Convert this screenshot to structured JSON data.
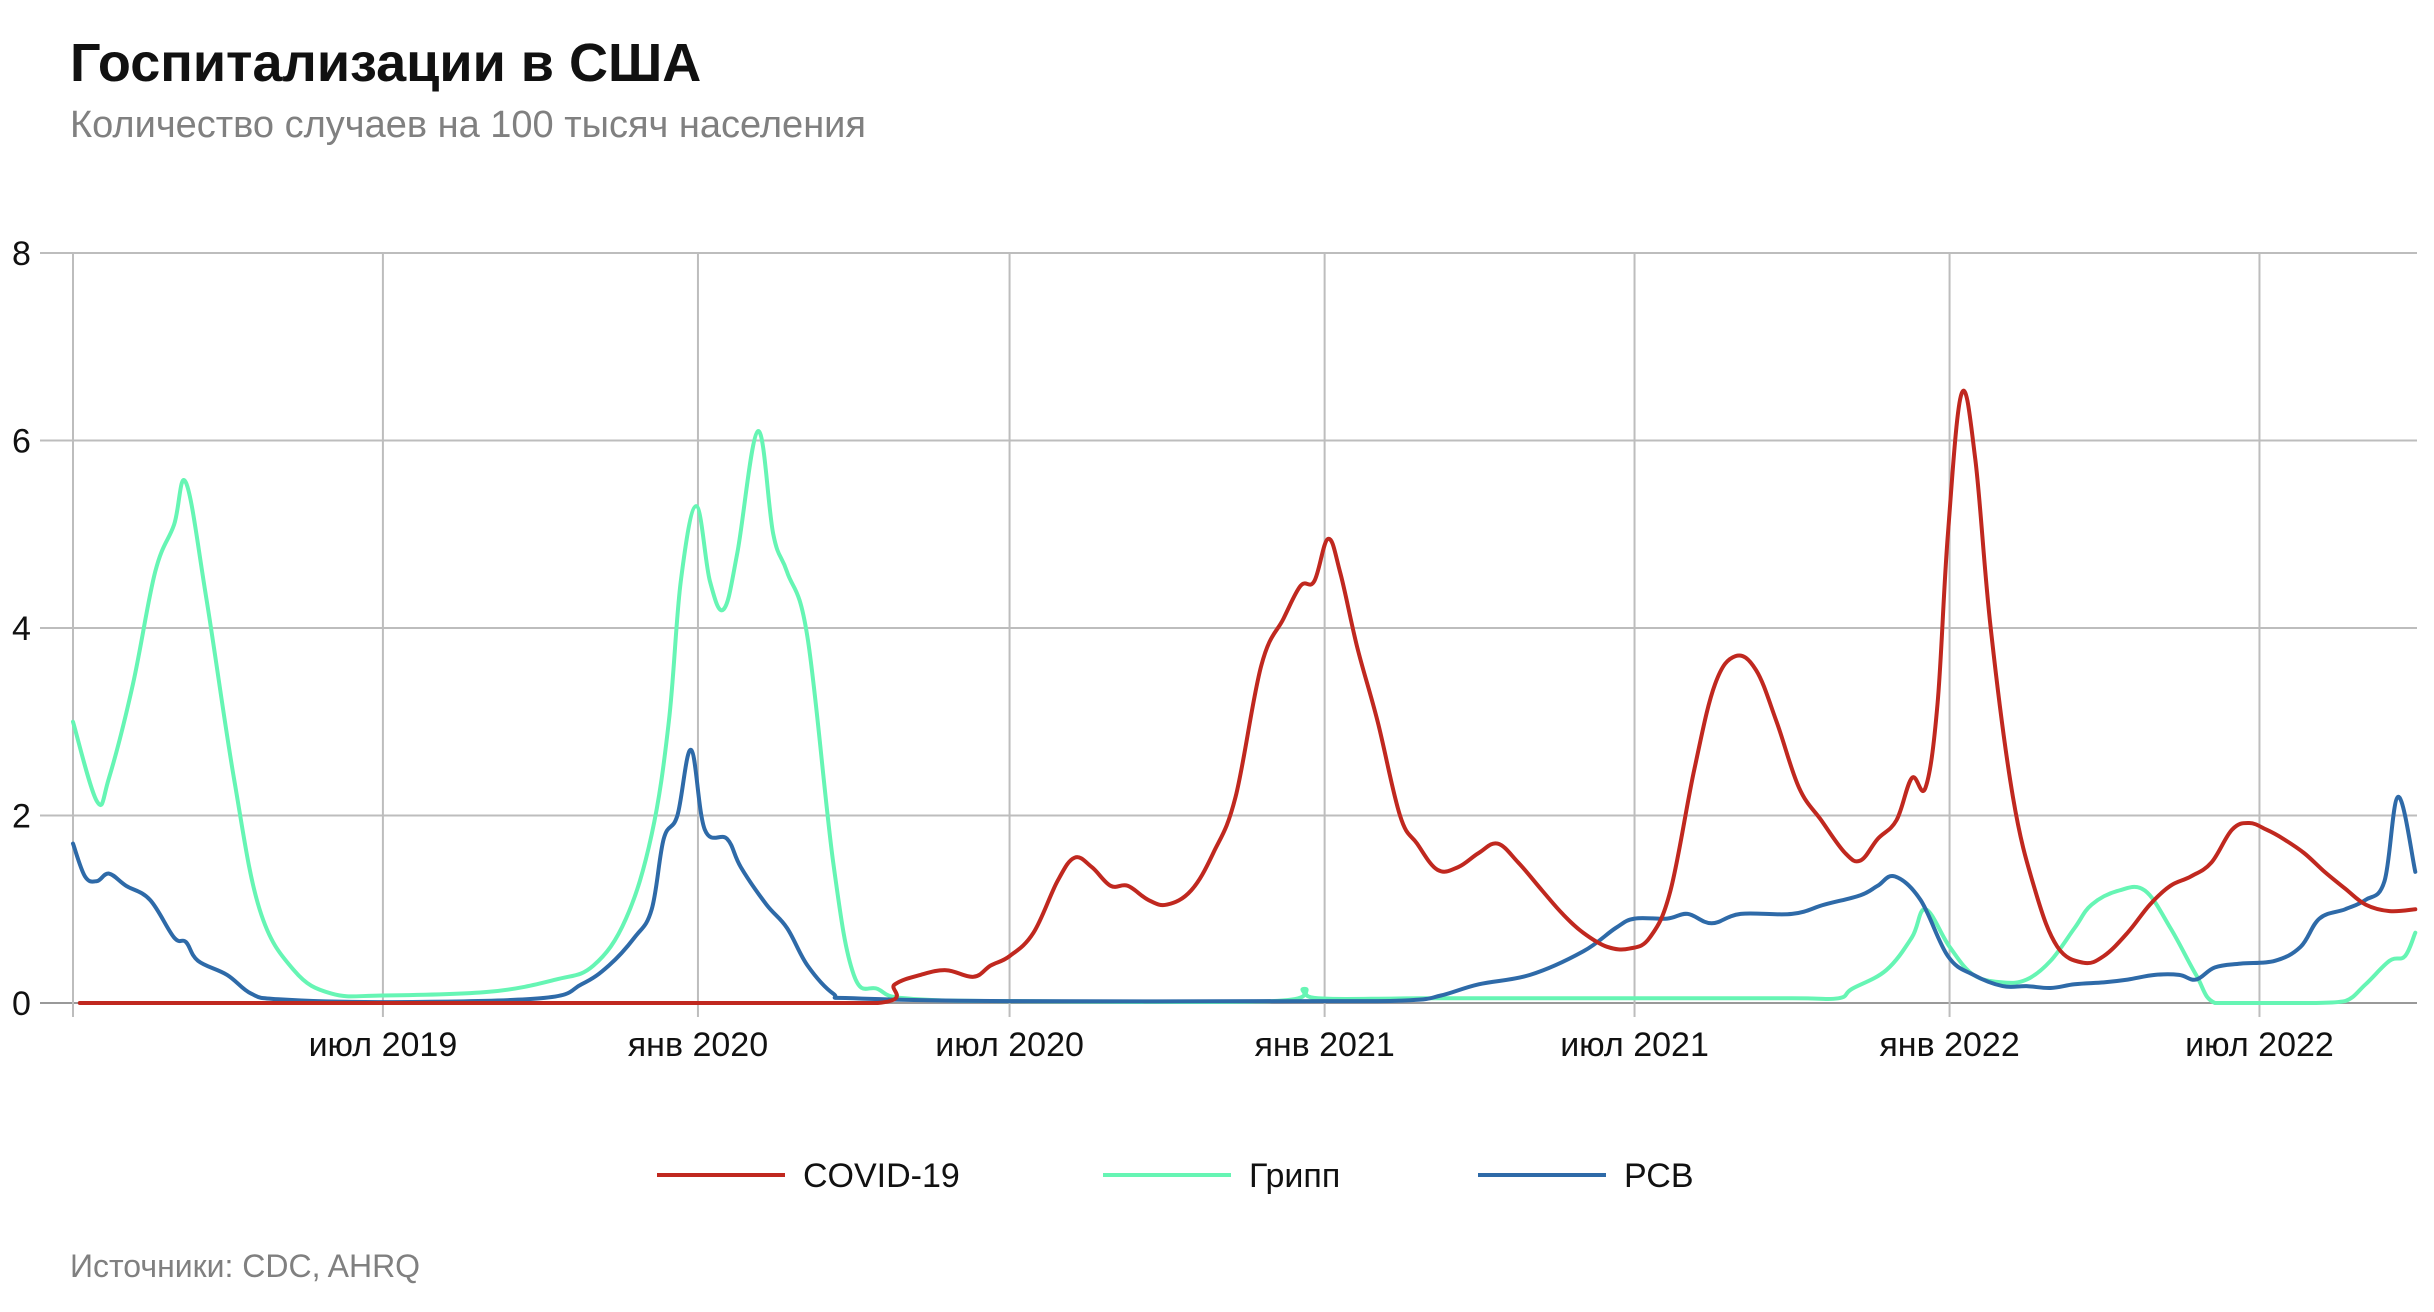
{
  "header": {
    "title": "Госпитализации в США",
    "subtitle": "Количество случаев на 100 тысяч населения"
  },
  "footer": {
    "source": "Источники: CDC, AHRQ"
  },
  "colors": {
    "covid": "#c0281f",
    "flu": "#66f5b4",
    "rsv": "#2e6aa8",
    "grid": "#bdbdbd",
    "axis": "#999999"
  },
  "chart_data": {
    "type": "line",
    "title": "Госпитализации в США",
    "subtitle": "Количество случаев на 100 тысяч населения",
    "xlabel": "",
    "ylabel": "",
    "x_range": [
      "2019-01-01",
      "2022-10-01"
    ],
    "ylim": [
      0,
      8
    ],
    "y_ticks": [
      0,
      2,
      4,
      6,
      8
    ],
    "x_ticks": [
      {
        "date": "2019-07-01",
        "label": "июл 2019"
      },
      {
        "date": "2020-01-01",
        "label": "янв 2020"
      },
      {
        "date": "2020-07-01",
        "label": "июл 2020"
      },
      {
        "date": "2021-01-01",
        "label": "янв 2021"
      },
      {
        "date": "2021-07-01",
        "label": "июл 2021"
      },
      {
        "date": "2022-01-01",
        "label": "янв 2022"
      },
      {
        "date": "2022-07-01",
        "label": "июл 2022"
      }
    ],
    "grid": true,
    "legend_position": "bottom-center",
    "series": [
      {
        "name": "COVID-19",
        "color": "#c0281f",
        "points": [
          [
            "2019-01-05",
            0
          ],
          [
            "2019-07-01",
            0
          ],
          [
            "2020-01-01",
            0
          ],
          [
            "2020-04-15",
            0
          ],
          [
            "2020-04-25",
            0.2
          ],
          [
            "2020-05-10",
            0.3
          ],
          [
            "2020-05-25",
            0.35
          ],
          [
            "2020-06-10",
            0.28
          ],
          [
            "2020-06-20",
            0.4
          ],
          [
            "2020-07-01",
            0.5
          ],
          [
            "2020-07-15",
            0.75
          ],
          [
            "2020-07-29",
            1.3
          ],
          [
            "2020-08-08",
            1.55
          ],
          [
            "2020-08-18",
            1.45
          ],
          [
            "2020-08-29",
            1.25
          ],
          [
            "2020-09-08",
            1.25
          ],
          [
            "2020-09-20",
            1.1
          ],
          [
            "2020-10-01",
            1.05
          ],
          [
            "2020-10-15",
            1.2
          ],
          [
            "2020-10-28",
            1.6
          ],
          [
            "2020-11-10",
            2.2
          ],
          [
            "2020-11-25",
            3.6
          ],
          [
            "2020-12-08",
            4.1
          ],
          [
            "2020-12-18",
            4.45
          ],
          [
            "2020-12-26",
            4.5
          ],
          [
            "2021-01-03",
            4.95
          ],
          [
            "2021-01-10",
            4.6
          ],
          [
            "2021-01-20",
            3.8
          ],
          [
            "2021-02-01",
            3.0
          ],
          [
            "2021-02-14",
            2.0
          ],
          [
            "2021-02-24",
            1.7
          ],
          [
            "2021-03-08",
            1.42
          ],
          [
            "2021-03-20",
            1.45
          ],
          [
            "2021-04-01",
            1.6
          ],
          [
            "2021-04-12",
            1.7
          ],
          [
            "2021-04-24",
            1.5
          ],
          [
            "2021-05-08",
            1.2
          ],
          [
            "2021-05-20",
            0.95
          ],
          [
            "2021-06-01",
            0.75
          ],
          [
            "2021-06-15",
            0.6
          ],
          [
            "2021-06-28",
            0.58
          ],
          [
            "2021-07-10",
            0.7
          ],
          [
            "2021-07-22",
            1.2
          ],
          [
            "2021-08-05",
            2.5
          ],
          [
            "2021-08-17",
            3.4
          ],
          [
            "2021-08-29",
            3.7
          ],
          [
            "2021-09-10",
            3.55
          ],
          [
            "2021-09-22",
            3.0
          ],
          [
            "2021-10-05",
            2.3
          ],
          [
            "2021-10-18",
            1.95
          ],
          [
            "2021-11-01",
            1.6
          ],
          [
            "2021-11-10",
            1.52
          ],
          [
            "2021-11-20",
            1.75
          ],
          [
            "2021-12-01",
            1.95
          ],
          [
            "2021-12-10",
            2.4
          ],
          [
            "2021-12-18",
            2.3
          ],
          [
            "2021-12-25",
            3.2
          ],
          [
            "2021-12-31",
            5.0
          ],
          [
            "2022-01-08",
            6.5
          ],
          [
            "2022-01-16",
            5.8
          ],
          [
            "2022-01-25",
            4.0
          ],
          [
            "2022-02-07",
            2.2
          ],
          [
            "2022-02-20",
            1.2
          ],
          [
            "2022-03-05",
            0.6
          ],
          [
            "2022-03-20",
            0.43
          ],
          [
            "2022-04-01",
            0.5
          ],
          [
            "2022-04-15",
            0.75
          ],
          [
            "2022-04-28",
            1.05
          ],
          [
            "2022-05-10",
            1.25
          ],
          [
            "2022-05-22",
            1.35
          ],
          [
            "2022-06-03",
            1.5
          ],
          [
            "2022-06-15",
            1.85
          ],
          [
            "2022-06-25",
            1.92
          ],
          [
            "2022-07-05",
            1.85
          ],
          [
            "2022-07-15",
            1.75
          ],
          [
            "2022-07-27",
            1.6
          ],
          [
            "2022-08-08",
            1.4
          ],
          [
            "2022-08-20",
            1.22
          ],
          [
            "2022-09-01",
            1.05
          ],
          [
            "2022-09-15",
            0.98
          ],
          [
            "2022-09-30",
            1.0
          ]
        ]
      },
      {
        "name": "Грипп",
        "color": "#66f5b4",
        "points": [
          [
            "2019-01-01",
            3.0
          ],
          [
            "2019-01-15",
            2.15
          ],
          [
            "2019-01-22",
            2.4
          ],
          [
            "2019-02-05",
            3.4
          ],
          [
            "2019-02-18",
            4.6
          ],
          [
            "2019-03-01",
            5.1
          ],
          [
            "2019-03-08",
            5.55
          ],
          [
            "2019-03-20",
            4.3
          ],
          [
            "2019-04-05",
            2.4
          ],
          [
            "2019-04-20",
            1.0
          ],
          [
            "2019-05-10",
            0.35
          ],
          [
            "2019-06-01",
            0.1
          ],
          [
            "2019-07-01",
            0.08
          ],
          [
            "2019-09-01",
            0.12
          ],
          [
            "2019-10-10",
            0.25
          ],
          [
            "2019-11-01",
            0.4
          ],
          [
            "2019-11-20",
            0.9
          ],
          [
            "2019-12-05",
            1.8
          ],
          [
            "2019-12-15",
            3.0
          ],
          [
            "2019-12-22",
            4.5
          ],
          [
            "2019-12-31",
            5.3
          ],
          [
            "2020-01-08",
            4.5
          ],
          [
            "2020-01-16",
            4.2
          ],
          [
            "2020-01-24",
            4.8
          ],
          [
            "2020-02-05",
            6.1
          ],
          [
            "2020-02-14",
            5.0
          ],
          [
            "2020-02-22",
            4.6
          ],
          [
            "2020-03-05",
            3.9
          ],
          [
            "2020-03-20",
            1.5
          ],
          [
            "2020-04-01",
            0.3
          ],
          [
            "2020-04-15",
            0.15
          ],
          [
            "2020-05-01",
            0.05
          ],
          [
            "2020-07-01",
            0.02
          ],
          [
            "2020-12-01",
            0.02
          ],
          [
            "2020-12-20",
            0.15
          ],
          [
            "2020-12-28",
            0.05
          ],
          [
            "2021-03-01",
            0.05
          ],
          [
            "2021-07-01",
            0.05
          ],
          [
            "2021-10-01",
            0.05
          ],
          [
            "2021-10-28",
            0.05
          ],
          [
            "2021-11-05",
            0.15
          ],
          [
            "2021-11-25",
            0.35
          ],
          [
            "2021-12-10",
            0.7
          ],
          [
            "2021-12-18",
            1.0
          ],
          [
            "2022-01-01",
            0.6
          ],
          [
            "2022-01-15",
            0.3
          ],
          [
            "2022-02-01",
            0.22
          ],
          [
            "2022-02-15",
            0.25
          ],
          [
            "2022-03-01",
            0.45
          ],
          [
            "2022-03-15",
            0.8
          ],
          [
            "2022-03-25",
            1.05
          ],
          [
            "2022-04-10",
            1.2
          ],
          [
            "2022-04-25",
            1.2
          ],
          [
            "2022-05-10",
            0.8
          ],
          [
            "2022-05-25",
            0.3
          ],
          [
            "2022-06-05",
            0.0
          ],
          [
            "2022-07-01",
            0.0
          ],
          [
            "2022-08-01",
            0.0
          ],
          [
            "2022-08-20",
            0.02
          ],
          [
            "2022-09-01",
            0.2
          ],
          [
            "2022-09-15",
            0.45
          ],
          [
            "2022-09-24",
            0.5
          ],
          [
            "2022-09-30",
            0.75
          ]
        ]
      },
      {
        "name": "РСВ",
        "color": "#2e6aa8",
        "points": [
          [
            "2019-01-01",
            1.7
          ],
          [
            "2019-01-08",
            1.35
          ],
          [
            "2019-01-15",
            1.3
          ],
          [
            "2019-01-22",
            1.38
          ],
          [
            "2019-02-01",
            1.25
          ],
          [
            "2019-02-15",
            1.1
          ],
          [
            "2019-03-01",
            0.7
          ],
          [
            "2019-03-08",
            0.65
          ],
          [
            "2019-03-15",
            0.45
          ],
          [
            "2019-04-01",
            0.3
          ],
          [
            "2019-04-15",
            0.1
          ],
          [
            "2019-05-01",
            0.04
          ],
          [
            "2019-07-01",
            0.01
          ],
          [
            "2019-10-01",
            0.05
          ],
          [
            "2019-10-25",
            0.2
          ],
          [
            "2019-11-10",
            0.4
          ],
          [
            "2019-11-25",
            0.7
          ],
          [
            "2019-12-05",
            1.0
          ],
          [
            "2019-12-12",
            1.75
          ],
          [
            "2019-12-20",
            2.0
          ],
          [
            "2019-12-28",
            2.7
          ],
          [
            "2020-01-05",
            1.85
          ],
          [
            "2020-01-18",
            1.75
          ],
          [
            "2020-01-26",
            1.45
          ],
          [
            "2020-02-10",
            1.05
          ],
          [
            "2020-02-22",
            0.8
          ],
          [
            "2020-03-05",
            0.4
          ],
          [
            "2020-03-20",
            0.1
          ],
          [
            "2020-04-01",
            0.05
          ],
          [
            "2020-07-01",
            0.02
          ],
          [
            "2021-01-01",
            0.02
          ],
          [
            "2021-02-20",
            0.03
          ],
          [
            "2021-03-10",
            0.08
          ],
          [
            "2021-04-01",
            0.2
          ],
          [
            "2021-05-01",
            0.3
          ],
          [
            "2021-06-01",
            0.55
          ],
          [
            "2021-06-20",
            0.8
          ],
          [
            "2021-07-01",
            0.9
          ],
          [
            "2021-07-20",
            0.9
          ],
          [
            "2021-08-01",
            0.95
          ],
          [
            "2021-08-15",
            0.85
          ],
          [
            "2021-09-01",
            0.95
          ],
          [
            "2021-10-01",
            0.95
          ],
          [
            "2021-10-20",
            1.05
          ],
          [
            "2021-11-10",
            1.15
          ],
          [
            "2021-11-20",
            1.25
          ],
          [
            "2021-11-30",
            1.35
          ],
          [
            "2021-12-15",
            1.1
          ],
          [
            "2021-12-31",
            0.5
          ],
          [
            "2022-01-15",
            0.3
          ],
          [
            "2022-02-01",
            0.18
          ],
          [
            "2022-02-15",
            0.18
          ],
          [
            "2022-03-01",
            0.16
          ],
          [
            "2022-03-15",
            0.2
          ],
          [
            "2022-04-01",
            0.22
          ],
          [
            "2022-04-15",
            0.25
          ],
          [
            "2022-05-01",
            0.3
          ],
          [
            "2022-05-15",
            0.3
          ],
          [
            "2022-05-25",
            0.25
          ],
          [
            "2022-06-05",
            0.38
          ],
          [
            "2022-06-20",
            0.42
          ],
          [
            "2022-07-10",
            0.45
          ],
          [
            "2022-07-25",
            0.6
          ],
          [
            "2022-08-05",
            0.9
          ],
          [
            "2022-08-20",
            1.0
          ],
          [
            "2022-09-01",
            1.1
          ],
          [
            "2022-09-12",
            1.3
          ],
          [
            "2022-09-20",
            2.2
          ],
          [
            "2022-09-30",
            1.4
          ]
        ]
      }
    ]
  }
}
